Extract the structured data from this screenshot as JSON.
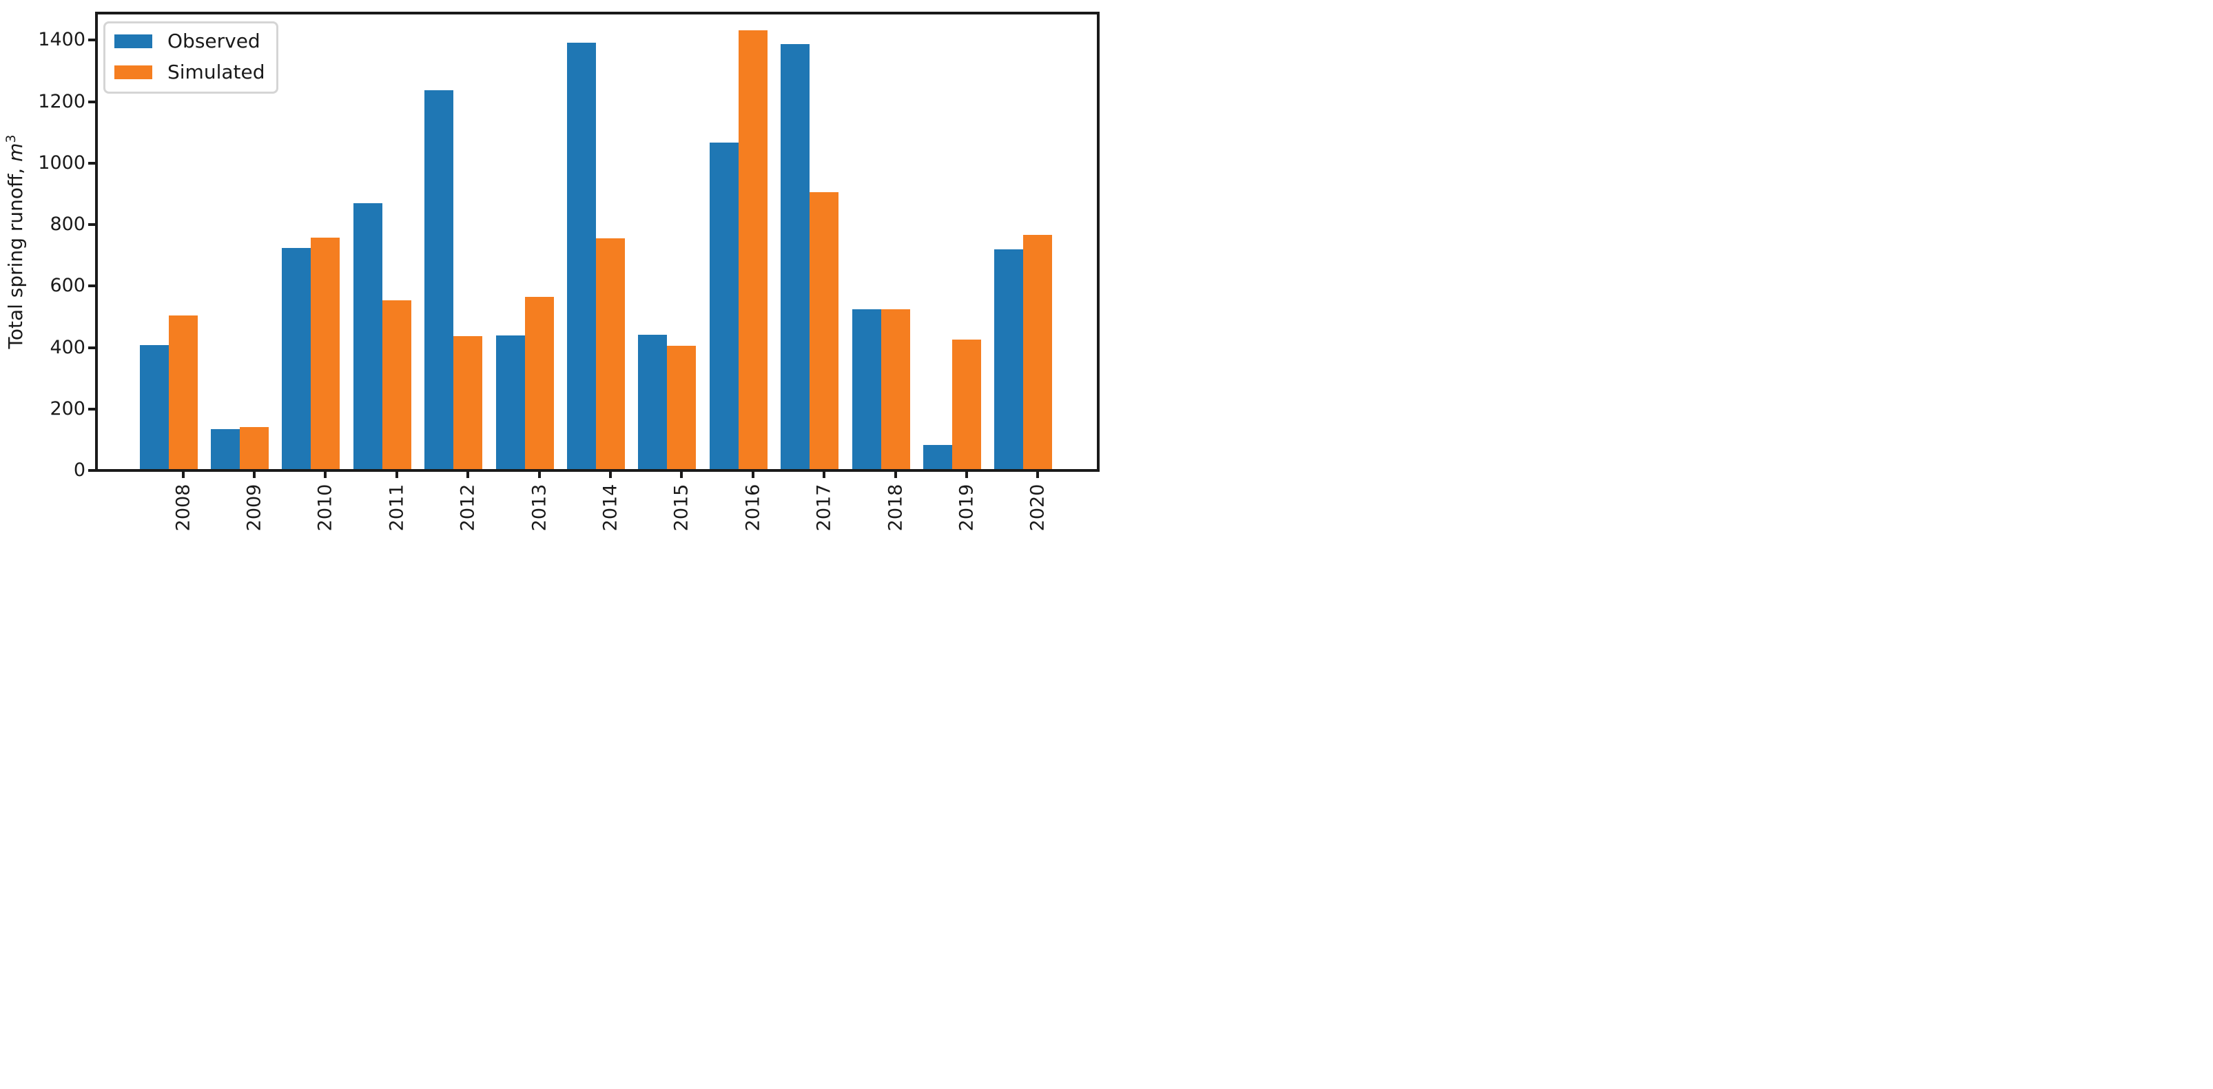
{
  "chart_data": {
    "type": "bar",
    "title": "",
    "xlabel": "",
    "ylabel": "Total spring runoff, m³",
    "ylabel_prefix": "Total spring runoff, ",
    "ylabel_symbol": "m",
    "ylabel_exponent": "3",
    "categories": [
      "2008",
      "2009",
      "2010",
      "2011",
      "2012",
      "2013",
      "2014",
      "2015",
      "2016",
      "2017",
      "2018",
      "2019",
      "2020"
    ],
    "series": [
      {
        "name": "Observed",
        "color": "#1f77b4",
        "values": [
          404,
          129,
          720,
          866,
          1232,
          434,
          1388,
          437,
          1062,
          1383,
          521,
          78,
          715
        ]
      },
      {
        "name": "Simulated",
        "color": "#f57e20",
        "values": [
          500,
          136,
          753,
          550,
          432,
          560,
          750,
          401,
          1428,
          902,
          519,
          421,
          763
        ]
      }
    ],
    "ytick_labels": [
      "0",
      "200",
      "400",
      "600",
      "800",
      "1000",
      "1200",
      "1400"
    ],
    "ytick_values": [
      0,
      200,
      400,
      600,
      800,
      1000,
      1200,
      1400
    ],
    "ylim": [
      0,
      1490
    ],
    "grid": false,
    "legend_position": "upper-left",
    "axis_color": "#1a1a1a",
    "text_color": "#1a1a1a",
    "background_color": "#ffffff"
  }
}
